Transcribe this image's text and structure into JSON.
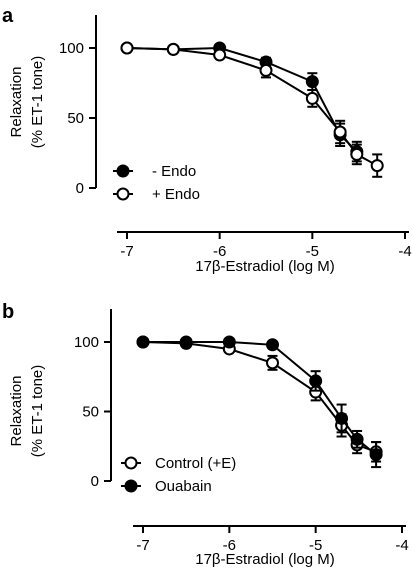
{
  "chart_data": [
    {
      "type": "line",
      "panel_label": "a",
      "xlabel": "17β-Estradiol (log M)",
      "ylabel_line1": "Relaxation",
      "ylabel_line2": "(% ET-1 tone)",
      "xlim": [
        -7,
        -4
      ],
      "ylim": [
        0,
        100
      ],
      "x_ticks": [
        -7,
        -6,
        -5,
        -4
      ],
      "x_tick_labels": [
        "-7",
        "-6",
        "-5",
        "-4"
      ],
      "y_ticks": [
        0,
        50,
        100
      ],
      "y_tick_labels": [
        "0",
        "50",
        "100"
      ],
      "grid": false,
      "legend_position": "bottom-left",
      "series": [
        {
          "name": "- Endo",
          "marker": "filled-circle",
          "x": [
            -7,
            -6.5,
            -6,
            -5.5,
            -5,
            -4.7,
            -4.52
          ],
          "y": [
            100,
            99,
            100,
            90,
            76,
            38,
            26
          ],
          "err": [
            0,
            1,
            1,
            3,
            6,
            8,
            7
          ]
        },
        {
          "name": "+ Endo",
          "marker": "open-circle",
          "x": [
            -7,
            -6.5,
            -6,
            -5.5,
            -5,
            -4.7,
            -4.52,
            -4.3
          ],
          "y": [
            100,
            99,
            95,
            84,
            64,
            40,
            24,
            16
          ],
          "err": [
            0,
            1,
            2,
            5,
            6,
            8,
            7,
            8
          ]
        }
      ],
      "colors": {
        "line": "#000000",
        "filled_marker": "#000000",
        "open_marker_fill": "#ffffff"
      }
    },
    {
      "type": "line",
      "panel_label": "b",
      "xlabel": "17β-Estradiol (log M)",
      "ylabel_line1": "Relaxation",
      "ylabel_line2": "(% ET-1 tone)",
      "xlim": [
        -7,
        -4
      ],
      "ylim": [
        0,
        100
      ],
      "x_ticks": [
        -7,
        -6,
        -5,
        -4
      ],
      "x_tick_labels": [
        "-7",
        "-6",
        "-5",
        "-4"
      ],
      "y_ticks": [
        0,
        50,
        100
      ],
      "y_tick_labels": [
        "0",
        "50",
        "100"
      ],
      "grid": false,
      "legend_position": "bottom-left",
      "series": [
        {
          "name": "Control (+E)",
          "marker": "open-circle",
          "x": [
            -7,
            -6.5,
            -6,
            -5.5,
            -5,
            -4.7,
            -4.52,
            -4.3
          ],
          "y": [
            100,
            99,
            95,
            85,
            64,
            40,
            26,
            21
          ],
          "err": [
            0,
            1,
            2,
            5,
            6,
            8,
            6,
            7
          ]
        },
        {
          "name": "Ouabain",
          "marker": "filled-circle",
          "x": [
            -7,
            -6.5,
            -6,
            -5.5,
            -5,
            -4.7,
            -4.52,
            -4.3
          ],
          "y": [
            100,
            100,
            100,
            98,
            72,
            45,
            30,
            19
          ],
          "err": [
            0,
            1,
            1,
            1,
            7,
            10,
            6,
            9
          ]
        }
      ],
      "colors": {
        "line": "#000000",
        "filled_marker": "#000000",
        "open_marker_fill": "#ffffff"
      }
    }
  ]
}
